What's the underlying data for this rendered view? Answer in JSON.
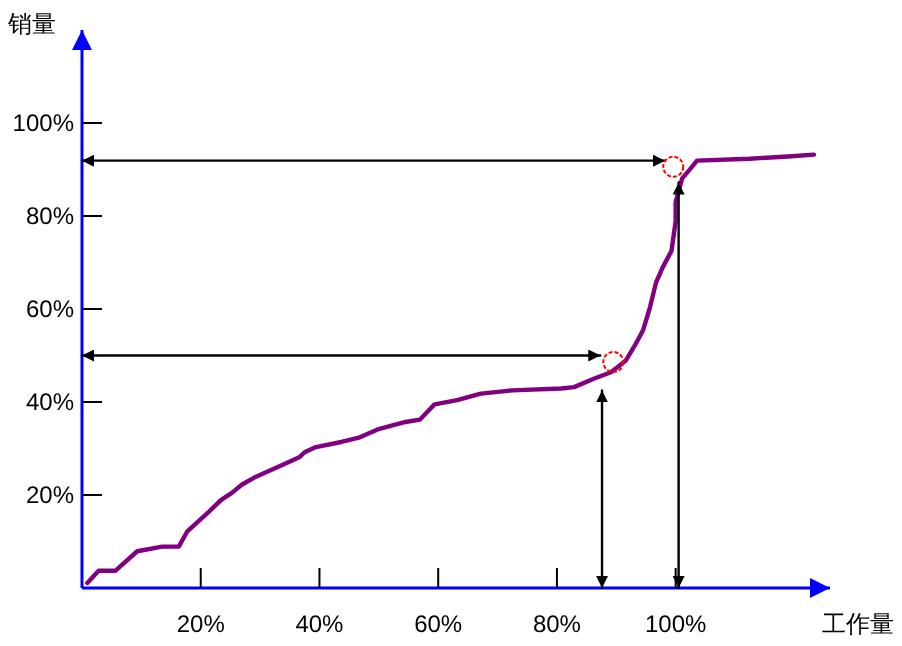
{
  "chart_data": {
    "type": "line",
    "xlabel": "工作量",
    "ylabel": "销量",
    "xlim": [
      0,
      126
    ],
    "ylim": [
      0,
      120
    ],
    "xticks": [
      {
        "value": 20,
        "label": "20%"
      },
      {
        "value": 40,
        "label": "40%"
      },
      {
        "value": 60,
        "label": "60%"
      },
      {
        "value": 80,
        "label": "80%"
      },
      {
        "value": 100,
        "label": "100%"
      }
    ],
    "yticks": [
      {
        "value": 20,
        "label": "20%"
      },
      {
        "value": 40,
        "label": "40%"
      },
      {
        "value": 60,
        "label": "60%"
      },
      {
        "value": 80,
        "label": "80%"
      },
      {
        "value": 100,
        "label": "100%"
      }
    ],
    "series": [
      {
        "color": "#800080",
        "x": [
          0.9,
          2.8,
          5.6,
          9.3,
          13.5,
          16.3,
          17.7,
          21.3,
          23.4,
          25.3,
          26.9,
          29.1,
          32.8,
          36.6,
          37.5,
          39.4,
          43.7,
          46.8,
          49.8,
          54.5,
          56.9,
          59.4,
          63.2,
          67.2,
          72.5,
          80.7,
          82.9,
          86.2,
          89.1,
          91.6,
          93.1,
          94.5,
          95.6,
          96.7,
          97.8,
          99.3,
          100.0,
          100.0,
          101.1,
          102.5,
          103.6,
          112.4,
          118.9,
          123.3
        ],
        "values": [
          1.1,
          3.7,
          3.7,
          7.9,
          8.9,
          8.9,
          12.1,
          16.3,
          18.9,
          20.5,
          22.2,
          23.8,
          25.9,
          28.1,
          29.2,
          30.3,
          31.4,
          32.4,
          34.1,
          35.7,
          36.2,
          39.5,
          40.4,
          41.8,
          42.5,
          42.9,
          43.2,
          45.0,
          46.4,
          48.9,
          52.1,
          55.4,
          60.0,
          65.7,
          68.9,
          72.5,
          78.9,
          83.0,
          88.1,
          90.2,
          91.9,
          92.3,
          92.8,
          93.2
        ]
      },
      {
        "color": "#000000",
        "x": [
          0,
          98.2
        ],
        "values": [
          91.9,
          91.9
        ]
      },
      {
        "color": "#000000",
        "x": [
          0,
          87.3
        ],
        "values": [
          50.0,
          50.0
        ]
      },
      {
        "color": "#000000",
        "x": [
          87.6,
          87.6
        ],
        "values": [
          0,
          42.5
        ]
      },
      {
        "color": "#000000",
        "x": [
          100.5,
          100.5
        ],
        "values": [
          0,
          87.2
        ]
      },
      {
        "type": "scatter",
        "color": "#ff0000",
        "marker": "circle",
        "x": [
          99.6,
          89.5
        ],
        "values": [
          90.6,
          48.6
        ]
      }
    ]
  }
}
